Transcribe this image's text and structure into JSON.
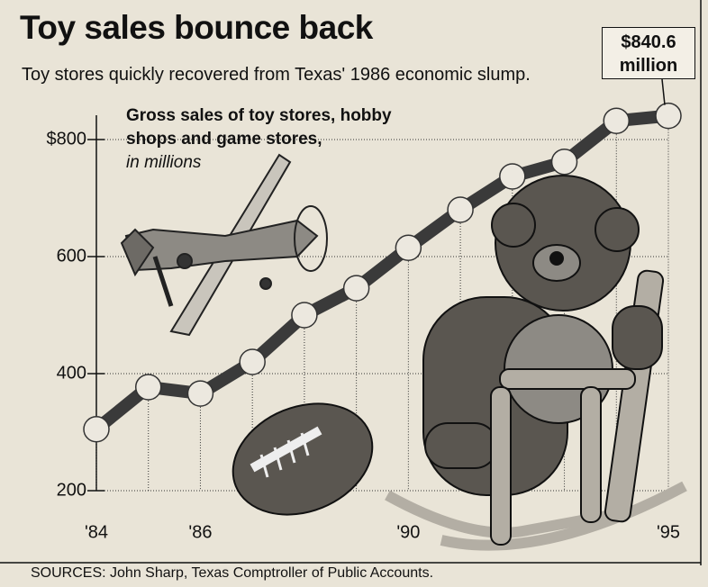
{
  "title": "Toy sales bounce back",
  "subtitle": "Toy stores quickly recovered from Texas' 1986 economic slump.",
  "source": "SOURCES: John Sharp, Texas Comptroller of Public Accounts.",
  "chart_data": {
    "type": "line",
    "y_label": "Gross sales of toy stores, hobby shops and game stores,",
    "y_units": "in millions",
    "categories": [
      "'84",
      null,
      "'86",
      null,
      null,
      null,
      "'90",
      null,
      null,
      null,
      null,
      "'95"
    ],
    "values": [
      305,
      377,
      366,
      420,
      500,
      546,
      615,
      680,
      737,
      762,
      832,
      840.6
    ],
    "value_labels": [
      null,
      null,
      null,
      null,
      null,
      null,
      null,
      null,
      null,
      null,
      null,
      "$840.6 million"
    ],
    "color": "#3a3a3a",
    "marker_color": "#ece8df",
    "ylim": [
      200,
      850
    ],
    "yticks": [
      200,
      400,
      600,
      {
        "value": 800,
        "label": "$800"
      }
    ],
    "grid": true
  }
}
